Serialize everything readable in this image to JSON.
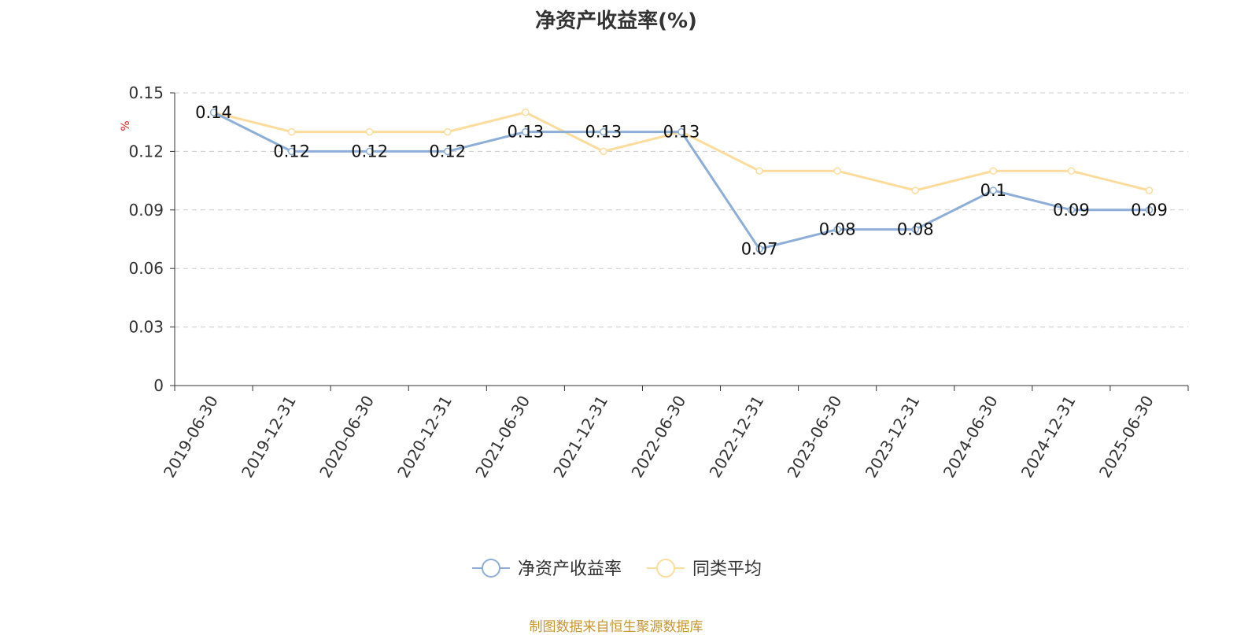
{
  "title": "净资产收益率(%)",
  "source_note": "制图数据来自恒生聚源数据库",
  "chart_data": {
    "type": "line",
    "title": "净资产收益率(%)",
    "ylabel": "%",
    "xlabel": "",
    "ylim": [
      0,
      0.15
    ],
    "yticks": [
      "0",
      "0.03",
      "0.06",
      "0.09",
      "0.12",
      "0.15"
    ],
    "grid": true,
    "legend_position": "bottom-center",
    "categories": [
      "2019-06-30",
      "2019-12-31",
      "2020-06-30",
      "2020-12-31",
      "2021-06-30",
      "2021-12-31",
      "2022-06-30",
      "2022-12-31",
      "2023-06-30",
      "2023-12-31",
      "2024-06-30",
      "2024-12-31",
      "2025-06-30"
    ],
    "series": [
      {
        "name": "净资产收益率",
        "color": "#8eaed8",
        "values": [
          0.14,
          0.12,
          0.12,
          0.12,
          0.13,
          0.13,
          0.13,
          0.07,
          0.08,
          0.08,
          0.1,
          0.09,
          0.09
        ],
        "labels": [
          "0.14",
          "0.12",
          "0.12",
          "0.12",
          "0.13",
          "0.13",
          "0.13",
          "0.07",
          "0.08",
          "0.08",
          "0.1",
          "0.09",
          "0.09"
        ]
      },
      {
        "name": "同类平均",
        "color": "#fbdc9c",
        "values": [
          0.14,
          0.13,
          0.13,
          0.13,
          0.14,
          0.12,
          0.13,
          0.11,
          0.11,
          0.1,
          0.11,
          0.11,
          0.1
        ]
      }
    ]
  }
}
